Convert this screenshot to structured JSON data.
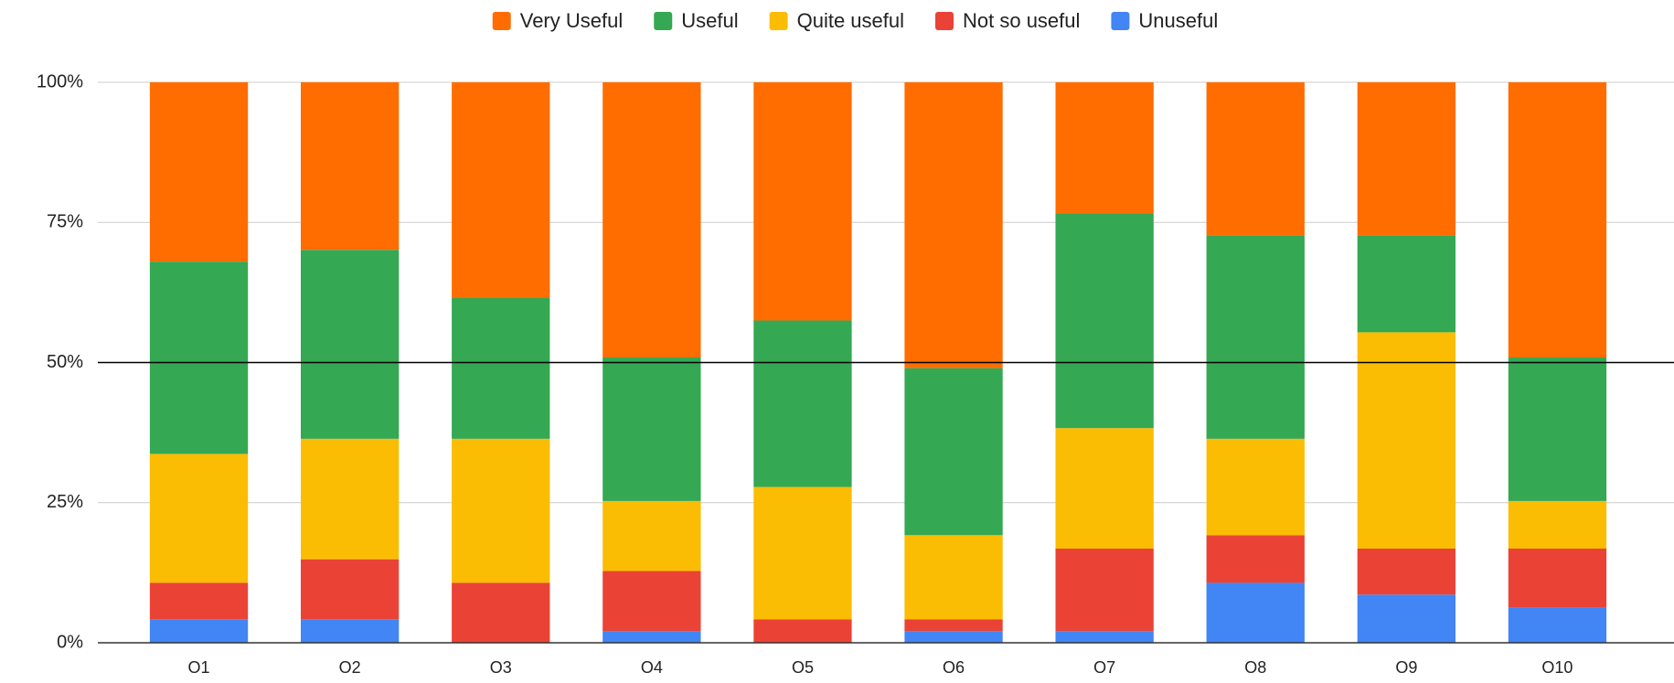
{
  "chart_data": {
    "type": "stacked_bar_percent",
    "categories": [
      "O1",
      "O2",
      "O3",
      "O4",
      "O5",
      "O6",
      "O7",
      "O8",
      "O9",
      "O10"
    ],
    "series": [
      {
        "name": "Very Useful",
        "color": "#ff6d01",
        "values": [
          32,
          29.9,
          38.5,
          49.1,
          42.5,
          51,
          23.4,
          27.4,
          27.4,
          49.1
        ]
      },
      {
        "name": "Useful",
        "color": "#34a853",
        "values": [
          34.3,
          33.7,
          25.1,
          25.6,
          29.7,
          29.8,
          38.3,
          36.2,
          17.2,
          25.6
        ]
      },
      {
        "name": "Quite useful",
        "color": "#fbbc04",
        "values": [
          23,
          21.5,
          25.7,
          12.5,
          23.6,
          15,
          21.5,
          17.2,
          38.6,
          8.5
        ]
      },
      {
        "name": "Not so useful",
        "color": "#ea4335",
        "values": [
          6.5,
          10.7,
          10.7,
          10.7,
          4.2,
          2.1,
          14.7,
          8.5,
          8.2,
          10.5
        ]
      },
      {
        "name": "Unuseful",
        "color": "#4285f4",
        "values": [
          4.2,
          4.2,
          0,
          2.1,
          0,
          2.1,
          2.1,
          10.7,
          8.6,
          6.3
        ]
      }
    ],
    "ylim": [
      0,
      100
    ],
    "yticks": [
      {
        "value": 0,
        "label": "0%"
      },
      {
        "value": 25,
        "label": "25%"
      },
      {
        "value": 50,
        "label": "50%"
      },
      {
        "value": 75,
        "label": "75%"
      },
      {
        "value": 100,
        "label": "100%"
      }
    ],
    "reference_line": 50,
    "grid": true,
    "legend": "top"
  }
}
